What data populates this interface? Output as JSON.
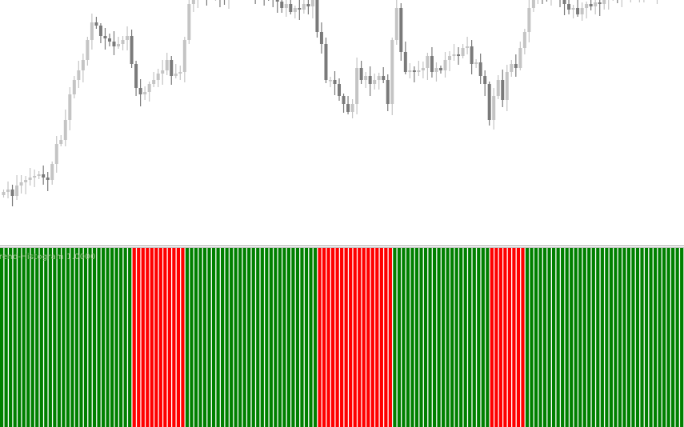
{
  "indicator": {
    "label": "Trend-Histogram 1.0000"
  },
  "chart_data": [
    {
      "type": "candlestick",
      "title": "",
      "colors": {
        "bull": "#c4c4c4",
        "bear": "#7a7a7a"
      },
      "grid": false,
      "closes": [
        60,
        63,
        55,
        68,
        72,
        75,
        78,
        80,
        82,
        78,
        75,
        95,
        120,
        125,
        150,
        182,
        200,
        212,
        225,
        250,
        272,
        268,
        255,
        252,
        248,
        242,
        245,
        250,
        255,
        220,
        190,
        182,
        185,
        195,
        200,
        208,
        212,
        225,
        205,
        208,
        210,
        250,
        295,
        305,
        310,
        310,
        305,
        308,
        312,
        305,
        300,
        305,
        315,
        320,
        318,
        320,
        315,
        310,
        308,
        305,
        303,
        300,
        298,
        290,
        295,
        285,
        290,
        288,
        295,
        292,
        300,
        260,
        245,
        200,
        200,
        195,
        180,
        170,
        160,
        170,
        215,
        200,
        205,
        195,
        200,
        205,
        200,
        170,
        250,
        290,
        235,
        210,
        212,
        210,
        212,
        215,
        230,
        210,
        215,
        212,
        225,
        230,
        232,
        230,
        240,
        242,
        220,
        222,
        205,
        195,
        150,
        180,
        200,
        175,
        210,
        220,
        215,
        240,
        260,
        290,
        305,
        315,
        310,
        305,
        310,
        305,
        300,
        295,
        288,
        290,
        282,
        290,
        295,
        292,
        297,
        295,
        300,
        303,
        308,
        305,
        310,
        308,
        312,
        305,
        310,
        315,
        312,
        310,
        315,
        320,
        318,
        315,
        320,
        322,
        320
      ]
    },
    {
      "type": "histogram",
      "name": "Trend-Histogram",
      "colors": {
        "up": "#008000",
        "down": "#ff0000"
      },
      "segments": [
        {
          "trend": "up",
          "count": 30
        },
        {
          "trend": "down",
          "count": 12
        },
        {
          "trend": "up",
          "count": 30
        },
        {
          "trend": "down",
          "count": 17
        },
        {
          "trend": "up",
          "count": 22
        },
        {
          "trend": "down",
          "count": 8
        },
        {
          "trend": "up",
          "count": 36
        }
      ]
    }
  ]
}
